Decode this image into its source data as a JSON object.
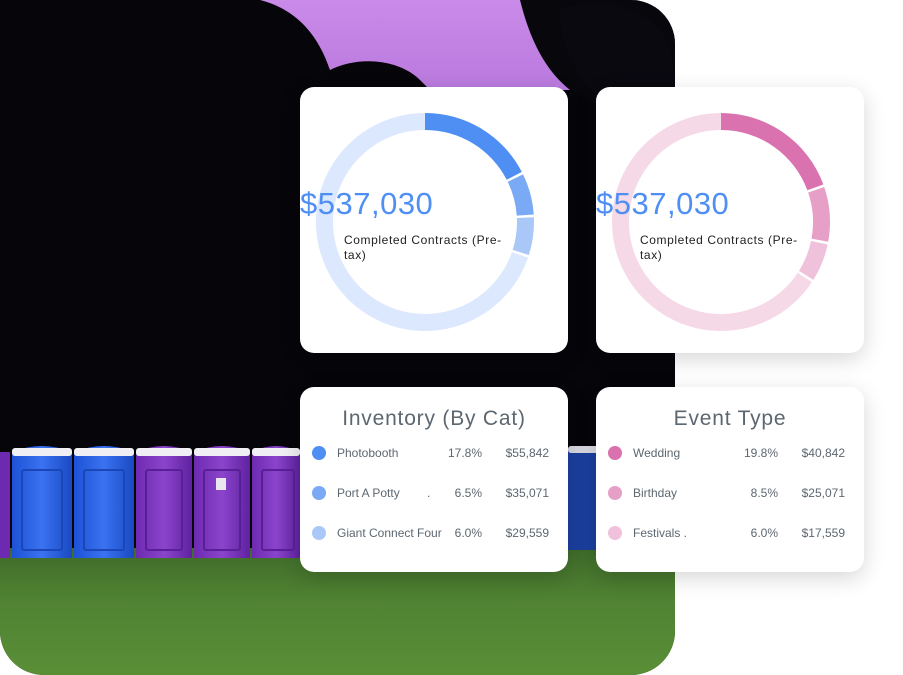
{
  "chart_data": [
    {
      "type": "pie",
      "center_value": "$537,030",
      "center_label": "Completed Contracts (Pre-tax)",
      "title": "Inventory (By Cat)",
      "slices": [
        {
          "name": "Photobooth",
          "percent": "17.8%",
          "value": "$55,842",
          "fraction": 0.178,
          "color": "#4f8ff3"
        },
        {
          "name": "Port A Potty",
          "percent": "6.5%",
          "value": "$35,071",
          "fraction": 0.065,
          "color": "#7aa9f5"
        },
        {
          "name": "Giant Connect Four",
          "percent": "6.0%",
          "value": "$29,559",
          "fraction": 0.06,
          "color": "#a9c8f8"
        }
      ],
      "remainder_color": "#dce8fd",
      "amount_color": "#4f8ff3"
    },
    {
      "type": "pie",
      "center_value": "$537,030",
      "center_label": "Completed Contracts (Pre-tax)",
      "title": "Event Type",
      "slices": [
        {
          "name": "Wedding",
          "percent": "19.8%",
          "value": "$40,842",
          "fraction": 0.198,
          "color": "#d972ae"
        },
        {
          "name": "Birthday",
          "percent": "8.5%",
          "value": "$25,071",
          "fraction": 0.085,
          "color": "#e6a0c8"
        },
        {
          "name": "Festivals .",
          "percent": "6.0%",
          "value": "$17,559",
          "fraction": 0.06,
          "color": "#efc1db"
        }
      ],
      "remainder_color": "#f6d9e7",
      "amount_color": "#4f8ff3"
    }
  ],
  "rows_meta": {
    "port_suffix": "."
  }
}
